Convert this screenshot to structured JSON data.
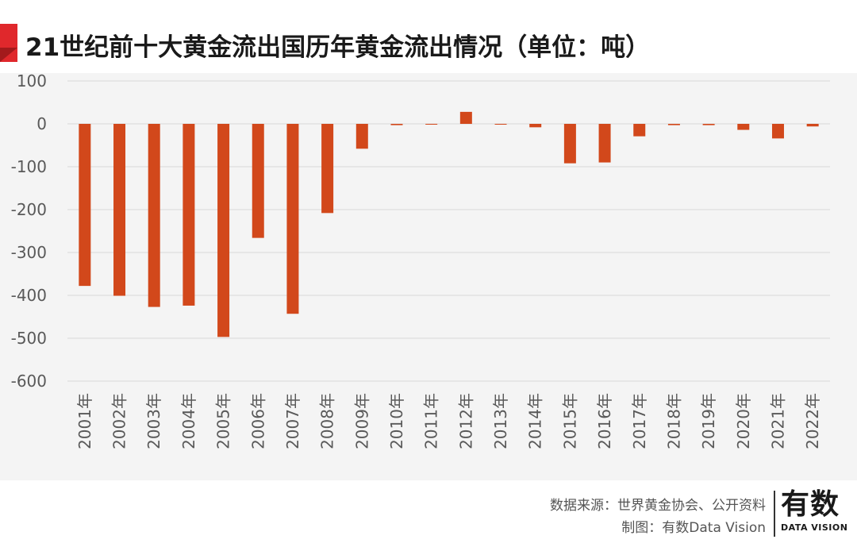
{
  "header": {
    "title": "21世纪前十大黄金流出国历年黄金流出情况（单位：吨）"
  },
  "footer": {
    "source": "数据来源：世界黄金协会、公开资料",
    "maker": "制图：有数Data Vision",
    "logo_main": "有数",
    "logo_sub": "DATA VISION"
  },
  "colors": {
    "bar": "#d2481b",
    "accent": "#e0282c",
    "grid": "#d9d9d9",
    "axis_text": "#595959"
  },
  "chart_data": {
    "type": "bar",
    "title": "21世纪前十大黄金流出国历年黄金流出情况（单位：吨）",
    "xlabel": "",
    "ylabel": "",
    "ylim": [
      -600,
      100
    ],
    "yticks": [
      100,
      0,
      -100,
      -200,
      -300,
      -400,
      -500,
      -600
    ],
    "ytick_labels": [
      "100",
      "0",
      "-100",
      "-200",
      "-300",
      "-400",
      "-500",
      "-600"
    ],
    "grid": true,
    "legend": "none",
    "categories": [
      "2001年",
      "2002年",
      "2003年",
      "2004年",
      "2005年",
      "2006年",
      "2007年",
      "2008年",
      "2009年",
      "2010年",
      "2011年",
      "2012年",
      "2013年",
      "2014年",
      "2015年",
      "2016年",
      "2017年",
      "2018年",
      "2019年",
      "2020年",
      "2021年",
      "2022年"
    ],
    "values": [
      -378,
      -401,
      -427,
      -424,
      -497,
      -266,
      -443,
      -208,
      -58,
      -3,
      -1,
      28,
      -1,
      -8,
      -92,
      -90,
      -29,
      -3,
      -3,
      -14,
      -34,
      -6
    ]
  }
}
